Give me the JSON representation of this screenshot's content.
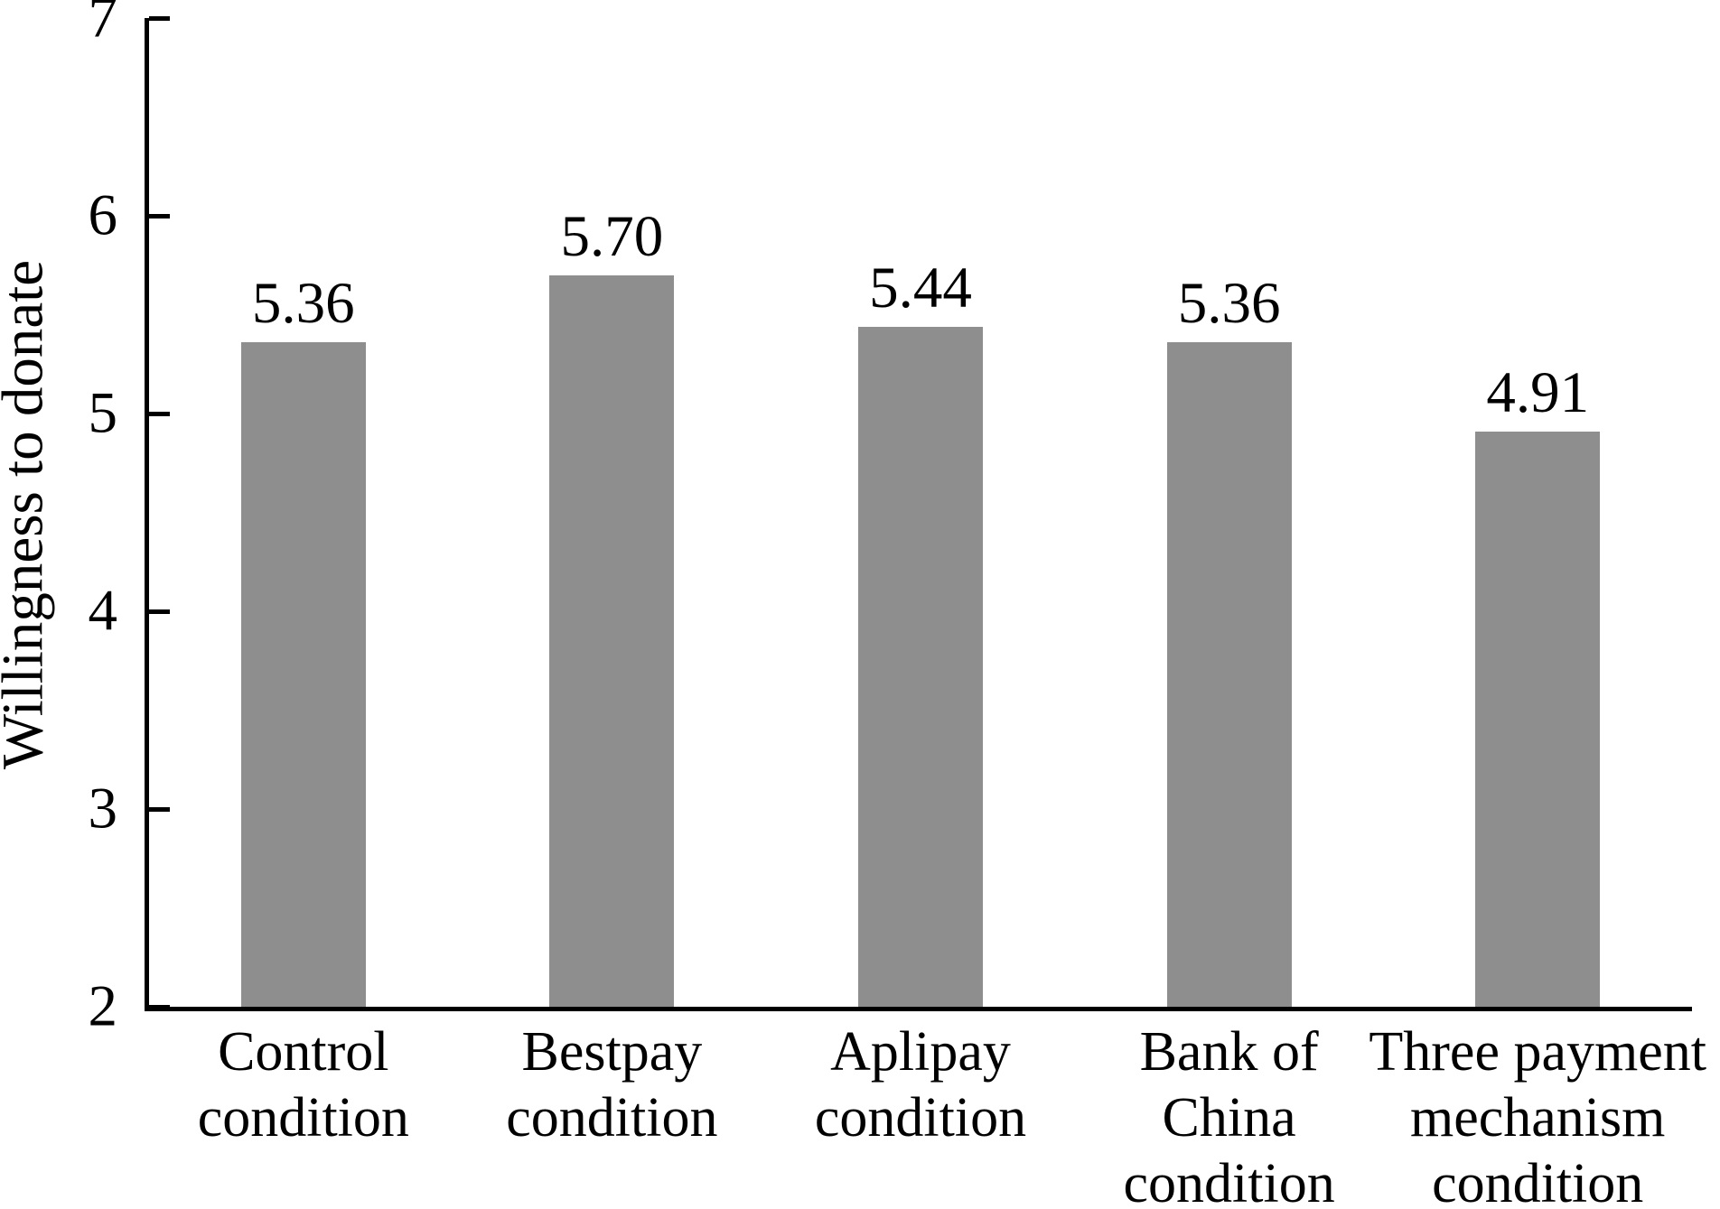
{
  "chart_data": {
    "type": "bar",
    "title": "",
    "xlabel": "",
    "ylabel": "Willingness to donate",
    "ylim": [
      2,
      7
    ],
    "yticks": [
      2,
      3,
      4,
      5,
      6,
      7
    ],
    "grid": false,
    "legend": "none",
    "bar_color": "#8e8e8e",
    "axis_color": "#000000",
    "text_color": "#000000",
    "categories": [
      "Control condition",
      "Bestpay condition",
      "Aplipay condition",
      "Bank of China condition",
      "Three payment mechanism condition"
    ],
    "category_label_lines": [
      [
        "Control",
        "condition"
      ],
      [
        "Bestpay",
        "condition"
      ],
      [
        "Aplipay",
        "condition"
      ],
      [
        "Bank of",
        "China",
        "condition"
      ],
      [
        "Three payment",
        "mechanism",
        "condition"
      ]
    ],
    "values": [
      5.36,
      5.7,
      5.44,
      5.36,
      4.91
    ],
    "value_labels": [
      "5.36",
      "5.70",
      "5.44",
      "5.36",
      "4.91"
    ]
  }
}
